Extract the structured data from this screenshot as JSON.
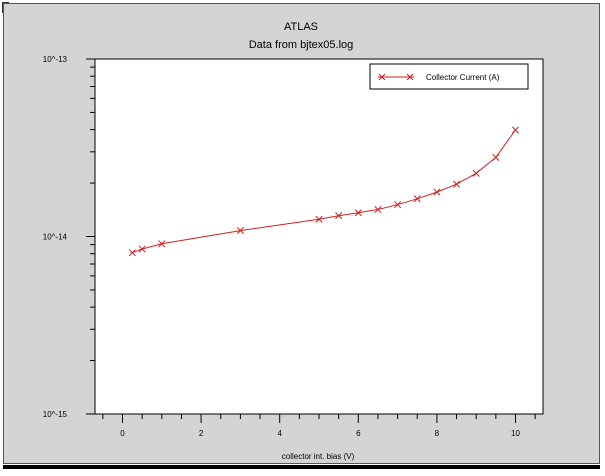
{
  "chart_data": {
    "type": "line",
    "title": "ATLAS",
    "subtitle": "Data from bjtex05.log",
    "xlabel": "collector int. bias (V)",
    "ylabel": "",
    "xlim": [
      -0.7,
      10.7
    ],
    "ylim": [
      1e-15,
      1e-13
    ],
    "yscale": "log",
    "grid": false,
    "legend_position": "top-right",
    "x_ticks": [
      "0",
      "2",
      "4",
      "6",
      "8",
      "10"
    ],
    "y_ticks": [
      "10^-13",
      "10^-14",
      "10^-15"
    ],
    "series": [
      {
        "name": "Collector Current (A)",
        "color": "#cc2222",
        "marker": "x",
        "x": [
          0.25,
          0.5,
          1.0,
          3.0,
          5.0,
          5.5,
          6.0,
          6.5,
          7.0,
          7.5,
          8.0,
          8.5,
          9.0,
          9.5,
          10.0
        ],
        "y": [
          8.1e-15,
          8.5e-15,
          9.1e-15,
          1.08e-14,
          1.25e-14,
          1.31e-14,
          1.36e-14,
          1.42e-14,
          1.51e-14,
          1.63e-14,
          1.78e-14,
          1.97e-14,
          2.27e-14,
          2.79e-14,
          3.98e-14
        ]
      }
    ]
  }
}
